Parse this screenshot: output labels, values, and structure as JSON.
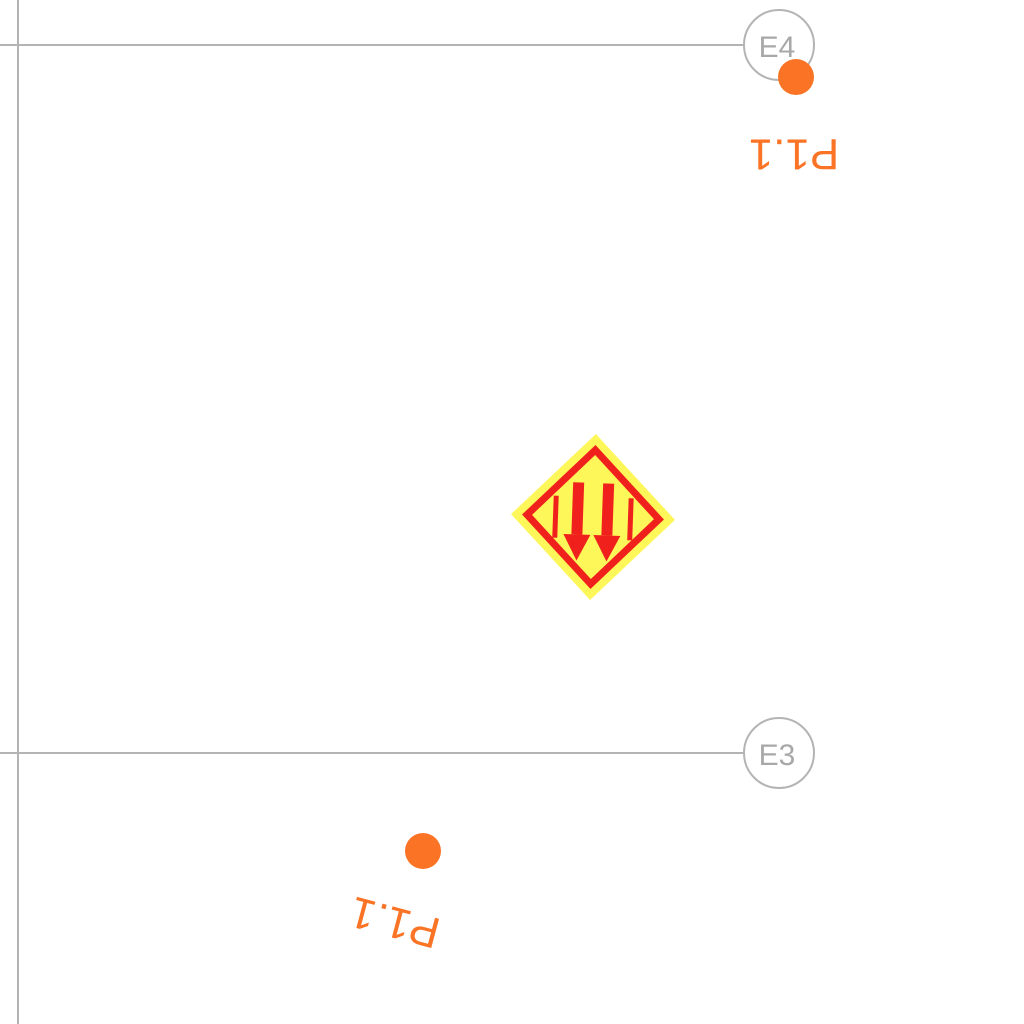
{
  "colors": {
    "background": "#ffffff",
    "grid_line": "#b4b4b4",
    "grid_label": "#a8a8a8",
    "point": "#fb7325",
    "point_label": "#fb7325",
    "sign_outer": "#fdf75a",
    "sign_inner": "#f0201c"
  },
  "grid": {
    "horizontal_lines": [
      {
        "label": "E4"
      },
      {
        "label": "E3"
      }
    ]
  },
  "points": [
    {
      "label": "P1.1",
      "icon": "point-dot"
    },
    {
      "label": "P1.1",
      "icon": "point-dot"
    }
  ],
  "symbols": [
    {
      "icon": "hazard-diamond-double-down-arrow-icon"
    }
  ]
}
